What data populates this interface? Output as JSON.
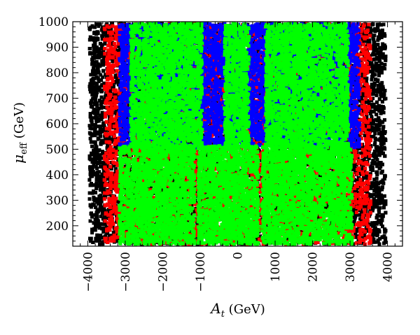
{
  "chart_data": {
    "type": "scatter",
    "title": "",
    "xlabel": {
      "symbol": "A",
      "subscript": "t",
      "unit": "(GeV)"
    },
    "ylabel": {
      "symbol": "μ",
      "subscript": "eff",
      "unit": "(GeV)"
    },
    "xlim": [
      -4400,
      4400
    ],
    "ylim": [
      120,
      1000
    ],
    "xticks": [
      -4000,
      -3000,
      -2000,
      -1000,
      0,
      1000,
      2000,
      3000,
      4000
    ],
    "yticks": [
      200,
      300,
      400,
      500,
      600,
      700,
      800,
      900,
      1000
    ],
    "grid": false,
    "legend": "none",
    "point_colors": {
      "black": "#000000",
      "red": "#ff0000",
      "blue": "#0000ff",
      "green": "#00ff00"
    },
    "series": [
      {
        "color": "black",
        "x_ranges": [
          [
            -4000,
            4000
          ]
        ],
        "y_range": [
          120,
          1000
        ]
      },
      {
        "color": "red",
        "x_ranges": [
          [
            -3600,
            3600
          ]
        ],
        "y_range": [
          120,
          1000
        ]
      },
      {
        "color": "blue",
        "x_ranges": [
          [
            -3200,
            3300
          ]
        ],
        "y_range": [
          500,
          1000
        ]
      },
      {
        "color": "green",
        "x_ranges": [
          [
            -2900,
            -900
          ],
          [
            -400,
            350
          ],
          [
            700,
            3000
          ]
        ],
        "y_range": [
          500,
          1000
        ]
      },
      {
        "color": "green",
        "x_ranges": [
          [
            -3200,
            -1100
          ],
          [
            600,
            3100
          ]
        ],
        "y_range": [
          120,
          520
        ]
      },
      {
        "color": "green",
        "x_ranges": [
          [
            -1100,
            600
          ]
        ],
        "y_range": [
          120,
          520
        ]
      }
    ]
  }
}
